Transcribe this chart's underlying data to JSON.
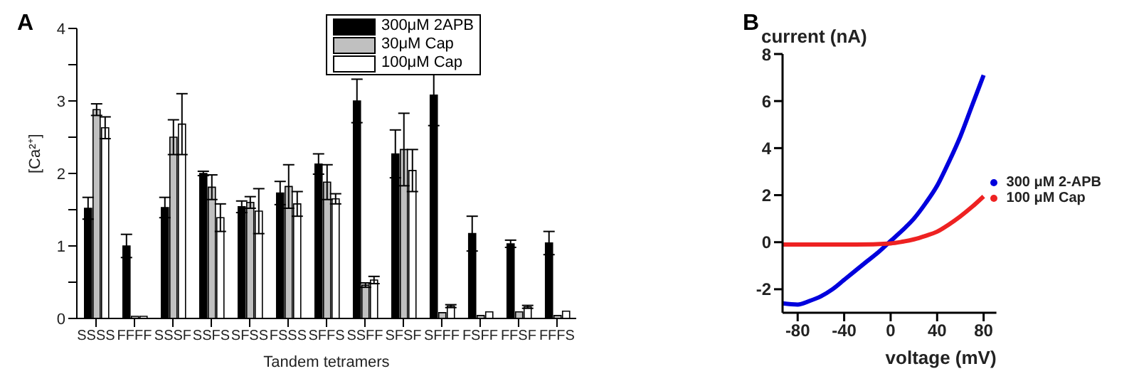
{
  "chart_data": [
    {
      "type": "bar",
      "title": "A",
      "xlabel": "Tandem tetramers",
      "ylabel": "[Ca²⁺]",
      "categories": [
        "SSSS",
        "FFFF",
        "SSSF",
        "SSFS",
        "SFSS",
        "FSSS",
        "SFFS",
        "SSFF",
        "SFSF",
        "SFFF",
        "FSFF",
        "FFSF",
        "FFFS"
      ],
      "series": [
        {
          "name": "300μM 2APB",
          "color": "#000000",
          "values": [
            1.52,
            1.0,
            1.53,
            2.0,
            1.54,
            1.73,
            2.13,
            3.0,
            2.27,
            3.08,
            1.17,
            1.03,
            1.04
          ],
          "errors": [
            0.15,
            0.16,
            0.14,
            0.03,
            0.08,
            0.16,
            0.14,
            0.3,
            0.33,
            0.42,
            0.24,
            0.05,
            0.16
          ]
        },
        {
          "name": "30μM Cap",
          "color": "#c0c0c0",
          "values": [
            2.88,
            0.03,
            2.5,
            1.81,
            1.6,
            1.82,
            1.88,
            0.46,
            2.33,
            0.08,
            0.04,
            0.09,
            0.04
          ],
          "errors": [
            0.08,
            null,
            0.24,
            0.17,
            0.08,
            0.3,
            0.24,
            0.03,
            0.5,
            null,
            null,
            null,
            null
          ]
        },
        {
          "name": "100μM Cap",
          "color": "#ffffff",
          "values": [
            2.63,
            0.03,
            2.68,
            1.39,
            1.48,
            1.58,
            1.65,
            0.53,
            2.04,
            0.17,
            0.09,
            0.16,
            0.1
          ],
          "errors": [
            0.15,
            null,
            0.42,
            0.19,
            0.31,
            0.17,
            0.07,
            0.05,
            0.29,
            0.02,
            null,
            0.02,
            null
          ]
        }
      ],
      "ylim": [
        0,
        4
      ],
      "yticks": [
        0,
        {
          "value": 0.5,
          "label": null
        },
        1,
        {
          "value": 1.5,
          "label": null
        },
        2,
        {
          "value": 2.5,
          "label": null
        },
        3,
        {
          "value": 3.5,
          "label": null
        },
        4
      ],
      "grid": false,
      "legend": "top right"
    },
    {
      "type": "line",
      "title": "B",
      "xlabel": "voltage (mV)",
      "ylabel": "current (nA)",
      "marker": "none",
      "series": [
        {
          "name": "300 μM 2-APB",
          "color": "#0000dd",
          "x": [
            -93,
            -80,
            -70,
            -60,
            -50,
            -40,
            -30,
            -20,
            -10,
            0,
            10,
            20,
            30,
            40,
            50,
            60,
            70,
            80
          ],
          "values": [
            -2.6,
            -2.65,
            -2.5,
            -2.3,
            -2.0,
            -1.6,
            -1.2,
            -0.8,
            -0.4,
            0.05,
            0.5,
            1.0,
            1.65,
            2.4,
            3.4,
            4.5,
            5.8,
            7.1
          ]
        },
        {
          "name": "100 μM Cap",
          "color": "#ee2222",
          "x": [
            -93,
            -60,
            -30,
            0,
            10,
            20,
            30,
            40,
            50,
            60,
            70,
            80
          ],
          "values": [
            -0.1,
            -0.1,
            -0.1,
            -0.05,
            0.02,
            0.12,
            0.27,
            0.45,
            0.75,
            1.1,
            1.5,
            1.95
          ]
        }
      ],
      "xlim": [
        -93,
        91
      ],
      "xticks": [
        -80,
        -40,
        0,
        40,
        80
      ],
      "ylim": [
        -3,
        8
      ],
      "yticks": [
        -2,
        0,
        2,
        4,
        6,
        8
      ],
      "grid": false,
      "legend": "right"
    }
  ]
}
